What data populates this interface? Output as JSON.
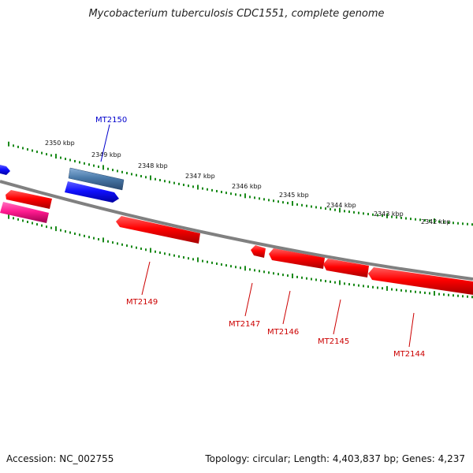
{
  "title": "Mycobacterium tuberculosis CDC1551, complete genome",
  "footer": {
    "accession": "Accession: NC_002755",
    "topology": "Topology: circular; Length: 4,403,837 bp; Genes: 4,237"
  },
  "colors": {
    "backbone": "#808080",
    "tick": "#1a8a1a",
    "gene_red": "#e00000",
    "gene_blue": "#1010e0",
    "gene_steel": "#4a7aaa",
    "gene_pink": "#e0208a",
    "label_red": "#cc0000",
    "label_blue": "#0000cc"
  },
  "scale_labels": [
    {
      "text": "2350 kbp",
      "kbp": 2350
    },
    {
      "text": "2349 kbp",
      "kbp": 2349
    },
    {
      "text": "2348 kbp",
      "kbp": 2348
    },
    {
      "text": "2347 kbp",
      "kbp": 2347
    },
    {
      "text": "2346 kbp",
      "kbp": 2346
    },
    {
      "text": "2345 kbp",
      "kbp": 2345
    },
    {
      "text": "2344 kbp",
      "kbp": 2344
    },
    {
      "text": "2343 kbp",
      "kbp": 2343
    },
    {
      "text": "2342 kbp",
      "kbp": 2342
    }
  ],
  "genes": [
    {
      "label": "MT2150",
      "strand": "forward",
      "color": "steel",
      "label_color": "blue"
    },
    {
      "label": "MT2149",
      "strand": "reverse",
      "color": "red",
      "label_color": "red"
    },
    {
      "label": "MT2147",
      "strand": "reverse",
      "color": "red",
      "label_color": "red"
    },
    {
      "label": "MT2146",
      "strand": "reverse",
      "color": "red",
      "label_color": "red"
    },
    {
      "label": "MT2145",
      "strand": "reverse",
      "color": "red",
      "label_color": "red"
    },
    {
      "label": "MT2144",
      "strand": "reverse",
      "color": "red",
      "label_color": "red"
    }
  ]
}
